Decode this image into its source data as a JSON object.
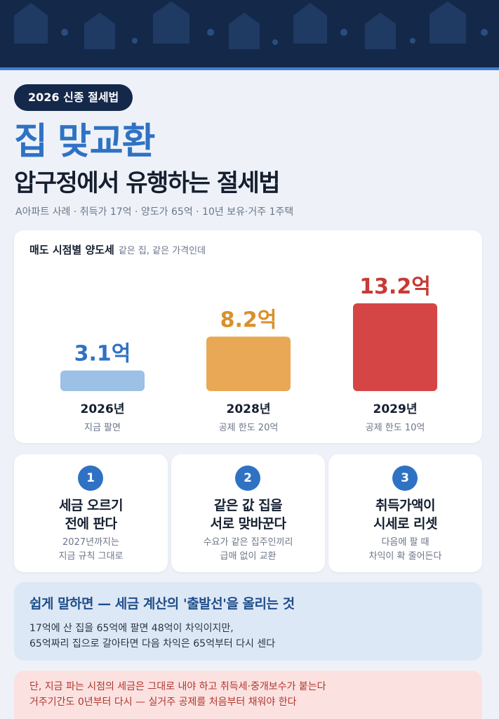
{
  "header": {
    "badge": "2026 신종 절세법",
    "title": "집 맞교환",
    "subtitle": "압구정에서 유행하는 절세법",
    "case_line": "A아파트 사례 · 취득가 17억 · 양도가 65억 · 10년 보유·거주 1주택"
  },
  "chart_card": {
    "heading": "매도 시점별 양도세",
    "note": "같은 집, 같은 가격인데"
  },
  "chart_data": {
    "type": "bar",
    "title": "매도 시점별 양도세",
    "categories": [
      "2026년",
      "2028년",
      "2029년"
    ],
    "values": [
      3.1,
      8.2,
      13.2
    ],
    "unit": "억",
    "value_labels": [
      "3.1억",
      "8.2억",
      "13.2억"
    ],
    "category_notes": [
      "지금 팔면",
      "공제 한도 20억",
      "공제 한도 10억"
    ],
    "colors": [
      "#9cc0e6",
      "#e9a855",
      "#d64545"
    ],
    "value_label_colors": [
      "#2f72c4",
      "#d9902a",
      "#c73a35"
    ],
    "grid": false
  },
  "steps": [
    {
      "number": "1",
      "title_lines": [
        "세금 오르기",
        "전에 판다"
      ],
      "desc_lines": [
        "2027년까지는",
        "지금 규칙 그대로"
      ]
    },
    {
      "number": "2",
      "title_lines": [
        "같은 값 집을",
        "서로 맞바꾼다"
      ],
      "desc_lines": [
        "수요가 같은 집주인끼리",
        "급매 없이 교환"
      ]
    },
    {
      "number": "3",
      "title_lines": [
        "취득가액이",
        "시세로 리셋"
      ],
      "desc_lines": [
        "다음에 팔 때",
        "차익이 확 줄어든다"
      ]
    }
  ],
  "summary": {
    "title": "쉽게 말하면 — 세금 계산의 '출발선'을 올리는 것",
    "lines": [
      "17억에 산 집을 65억에 팔면 48억이 차익이지만,",
      "65억짜리 집으로 갈아타면 다음 차익은 65억부터 다시 센다"
    ]
  },
  "warning": {
    "lines": [
      "단, 지금 파는 시점의 세금은 그대로 내야 하고 취득세·중개보수가 붙는다",
      "거주기간도 0년부터 다시 — 실거주 공제를 처음부터 채워야 한다"
    ]
  },
  "colors": {
    "navy": "#14284a",
    "accent_blue": "#2f72c4",
    "background": "#eef2f8",
    "summary_bg": "#dde8f6",
    "warning_bg": "#fbe2e0",
    "warning_text": "#b0362e"
  }
}
